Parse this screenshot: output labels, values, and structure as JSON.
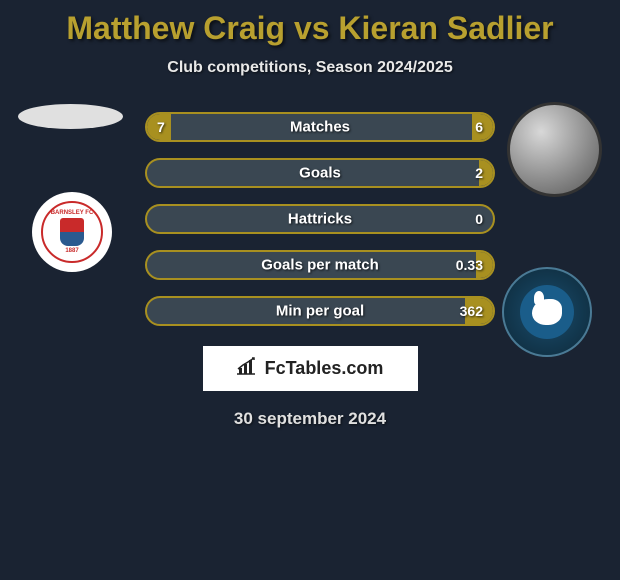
{
  "title": "Matthew Craig vs Kieran Sadlier",
  "subtitle": "Club competitions, Season 2024/2025",
  "date": "30 september 2024",
  "brand": "FcTables.com",
  "colors": {
    "background": "#1a2332",
    "accent": "#a89020",
    "title_color": "#b8a02f",
    "bar_bg": "#3a4752",
    "text": "#ffffff"
  },
  "bars": [
    {
      "label": "Matches",
      "left_val": "7",
      "right_val": "6",
      "left_pct": 7,
      "right_pct": 6
    },
    {
      "label": "Goals",
      "left_val": "",
      "right_val": "2",
      "left_pct": 0,
      "right_pct": 4
    },
    {
      "label": "Hattricks",
      "left_val": "",
      "right_val": "0",
      "left_pct": 0,
      "right_pct": 0
    },
    {
      "label": "Goals per match",
      "left_val": "",
      "right_val": "0.33",
      "left_pct": 0,
      "right_pct": 5
    },
    {
      "label": "Min per goal",
      "left_val": "",
      "right_val": "362",
      "left_pct": 0,
      "right_pct": 8
    }
  ],
  "bar_style": {
    "height": 30,
    "border_radius": 15,
    "border_color": "#a89020",
    "border_width": 2,
    "label_fontsize": 15,
    "value_fontsize": 14
  }
}
